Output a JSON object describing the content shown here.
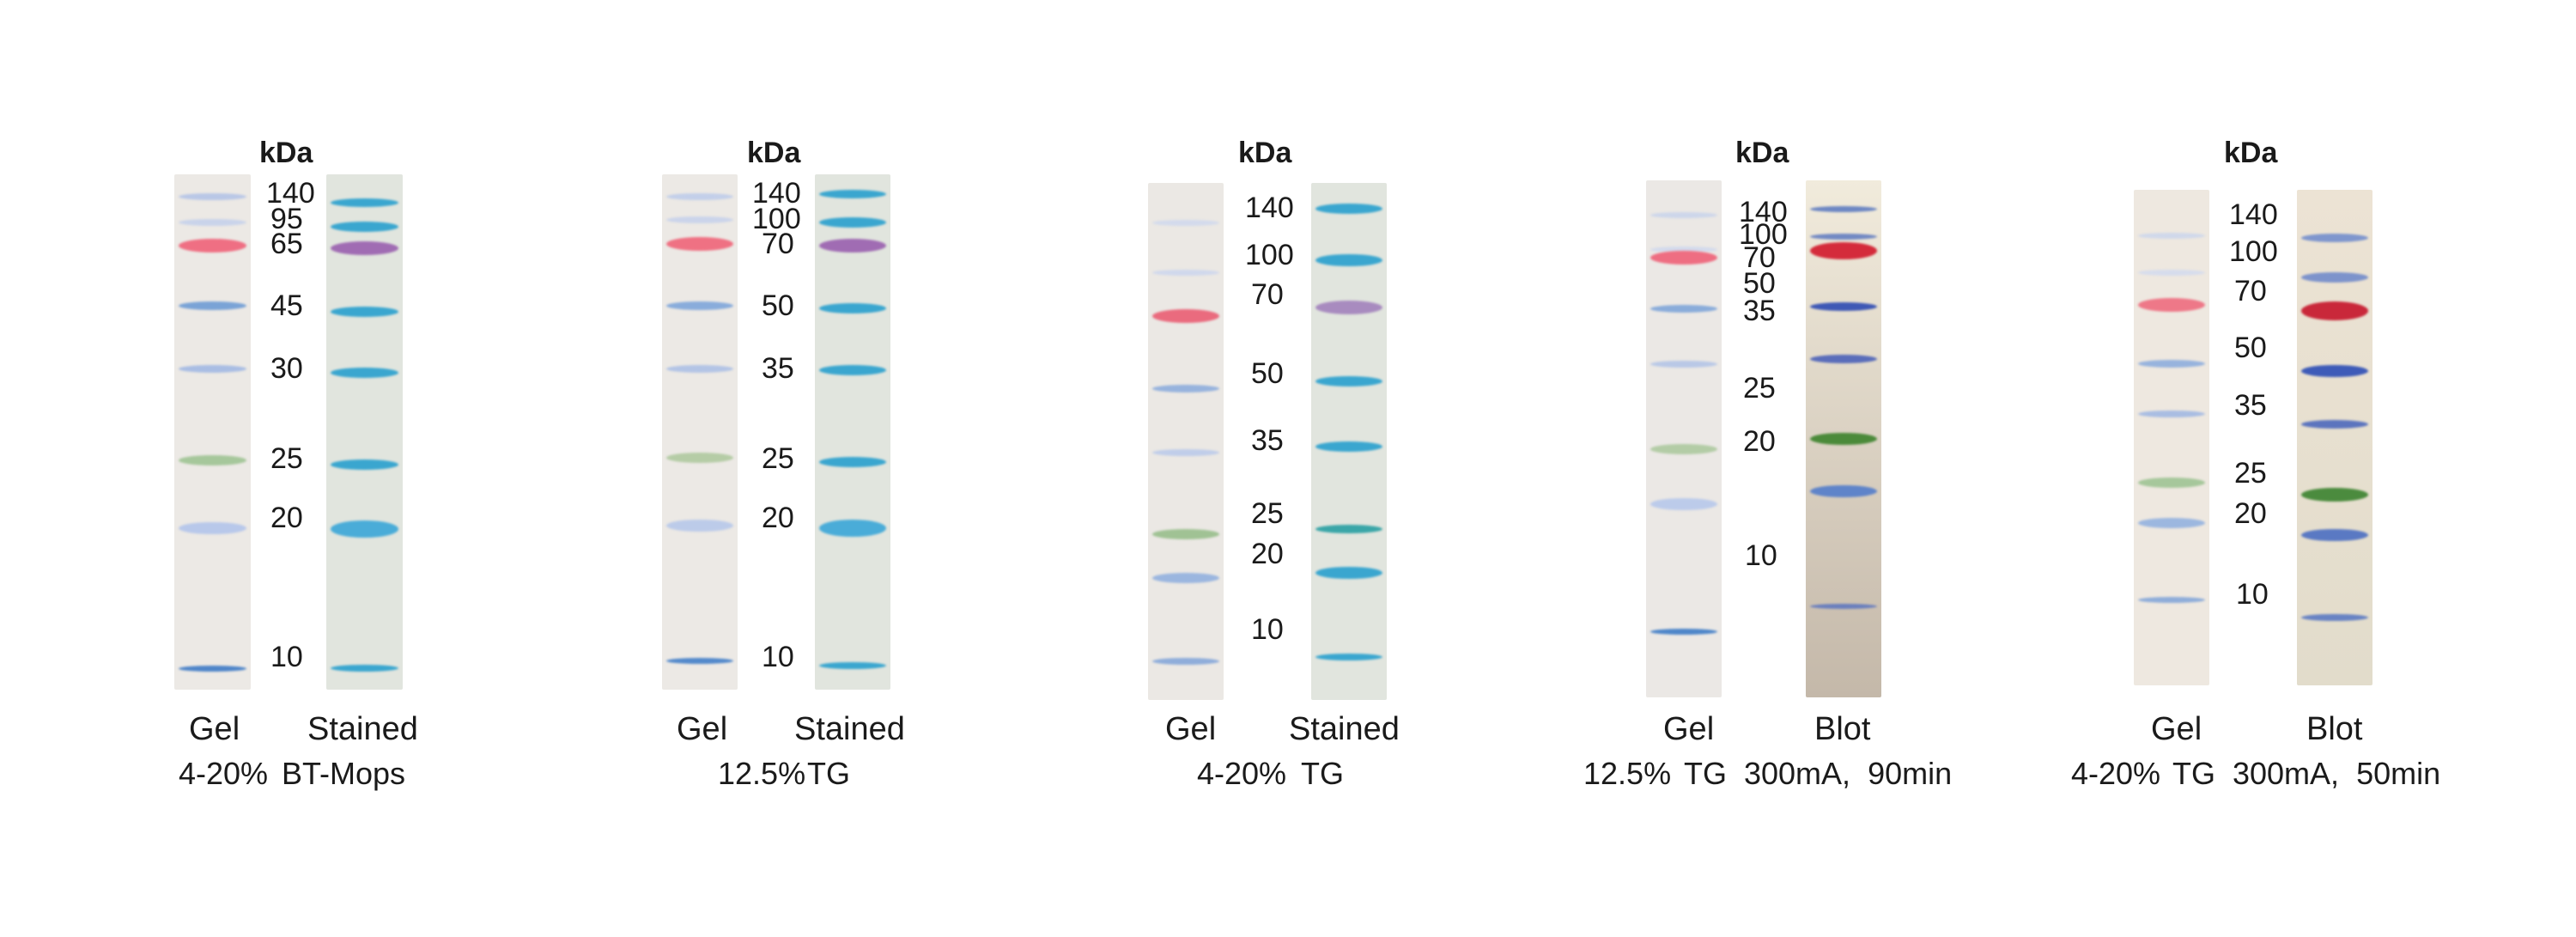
{
  "kda_label": "kDa",
  "panels": [
    {
      "id": "p1",
      "markers": [
        "140",
        "95",
        "65",
        "45",
        "30",
        "25",
        "20",
        "10"
      ],
      "lane_labels": [
        "Gel",
        "Stained"
      ],
      "condition_left": "4-20%",
      "condition_right": "BT-Mops"
    },
    {
      "id": "p2",
      "markers": [
        "140",
        "100",
        "70",
        "50",
        "35",
        "25",
        "20",
        "10"
      ],
      "lane_labels": [
        "Gel",
        "Stained"
      ],
      "condition_left": "12.5%",
      "condition_right": "TG"
    },
    {
      "id": "p3",
      "markers": [
        "140",
        "100",
        "70",
        "50",
        "35",
        "25",
        "20",
        "10"
      ],
      "lane_labels": [
        "Gel",
        "Stained"
      ],
      "condition_left": "4-20%",
      "condition_right": "TG"
    },
    {
      "id": "p4",
      "markers": [
        "140",
        "100",
        "70",
        "50",
        "35",
        "25",
        "20",
        "10"
      ],
      "lane_labels": [
        "Gel",
        "Blot"
      ],
      "condition_left": "12.5%",
      "condition_right": "TG  300mA,  90min"
    },
    {
      "id": "p5",
      "markers": [
        "140",
        "100",
        "70",
        "50",
        "35",
        "25",
        "20",
        "10"
      ],
      "lane_labels": [
        "Gel",
        "Blot"
      ],
      "condition_left": "4-20%",
      "condition_right": "TG  300mA,  50min"
    }
  ],
  "colors": {
    "gel_bg": "#ece9e6",
    "stained_bg": "#e3e6df",
    "blot_bg": "#d6cdc0",
    "band_blue": "#5b8fd0",
    "band_cyan": "#3aa9cf",
    "band_red": "#e2546a",
    "band_purple": "#a879b8",
    "band_green": "#7fae6c"
  }
}
